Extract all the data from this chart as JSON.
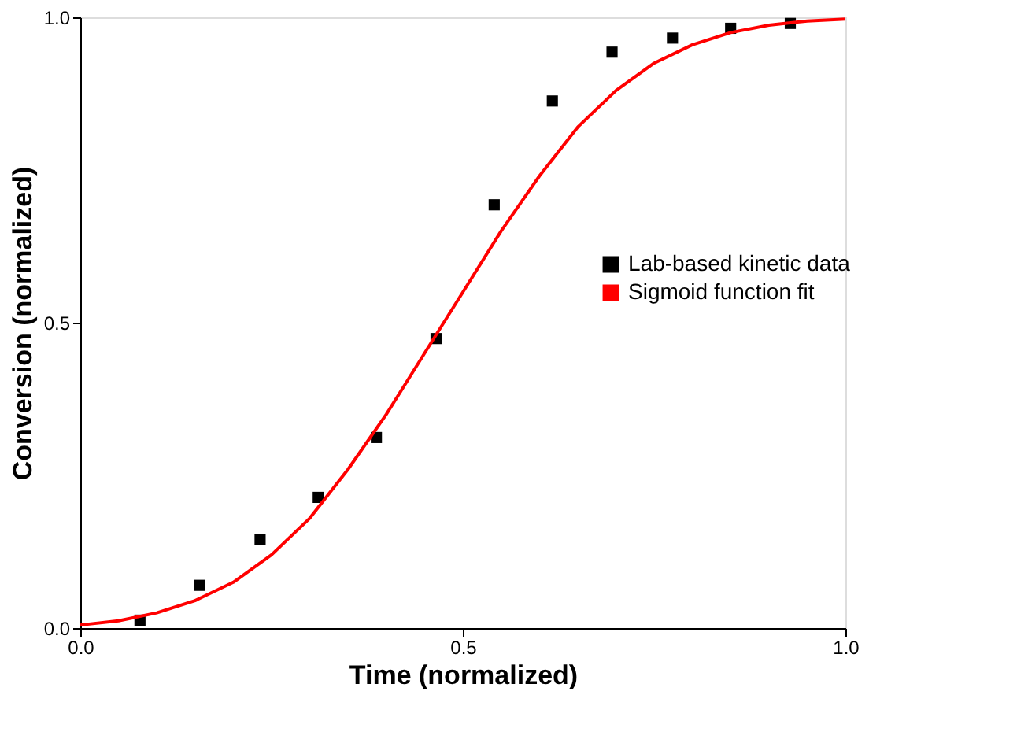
{
  "chart_data": {
    "type": "scatter",
    "xlabel": "Time (normalized)",
    "ylabel": "Conversion (normalized)",
    "xlim": [
      0,
      1
    ],
    "ylim": [
      0,
      1
    ],
    "xticks": [
      {
        "value": 0,
        "label": "0.0"
      },
      0.5,
      {
        "value": 1,
        "label": "1.0"
      }
    ],
    "yticks": [
      {
        "value": 0,
        "label": "0.0"
      },
      0.5,
      {
        "value": 1,
        "label": "1.0"
      }
    ],
    "grid": false,
    "legend": "right",
    "series": [
      {
        "name": "Lab-based kinetic data",
        "type": "scatter",
        "marker": "square",
        "color": "#000000",
        "x": [
          0.078,
          0.156,
          0.235,
          0.311,
          0.387,
          0.465,
          0.541,
          0.617,
          0.695,
          0.774,
          0.85,
          0.928
        ],
        "values": [
          0.013,
          0.07,
          0.145,
          0.214,
          0.312,
          0.474,
          0.693,
          0.863,
          0.943,
          0.966,
          0.982,
          0.99
        ]
      },
      {
        "name": "Sigmoid function fit",
        "type": "line",
        "marker": "none",
        "line_style": "solid",
        "color": "#ff0000",
        "x": [
          0,
          0.05,
          0.1,
          0.15,
          0.2,
          0.25,
          0.3,
          0.35,
          0.4,
          0.45,
          0.5,
          0.55,
          0.6,
          0.65,
          0.7,
          0.75,
          0.8,
          0.85,
          0.9,
          0.95,
          1.0
        ],
        "values": [
          0.005,
          0.012,
          0.025,
          0.045,
          0.075,
          0.12,
          0.18,
          0.26,
          0.35,
          0.45,
          0.55,
          0.65,
          0.74,
          0.82,
          0.88,
          0.925,
          0.955,
          0.975,
          0.987,
          0.994,
          0.997
        ]
      }
    ]
  }
}
